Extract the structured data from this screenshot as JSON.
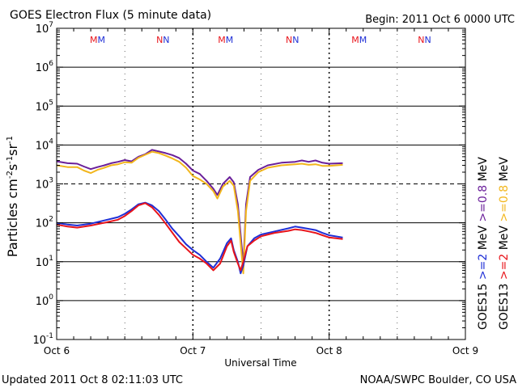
{
  "header": {
    "title": "GOES Electron Flux (5 minute data)",
    "begin": "Begin: 2011 Oct 6 0000 UTC"
  },
  "footer": {
    "updated": "Updated 2011 Oct  8 02:11:03 UTC",
    "credit": "NOAA/SWPC Boulder, CO USA"
  },
  "colors": {
    "goes15_2mev": "#1f2fd6",
    "goes13_2mev": "#e8141b",
    "goes15_08mev": "#6a1f9a",
    "goes13_08mev": "#f2b61c",
    "alert_threshold": "#000000"
  },
  "chart_data": {
    "type": "line",
    "title": "GOES Electron Flux (5 minute data)",
    "xlabel": "Universal Time",
    "ylabel_parts": [
      "Particles cm",
      "-2",
      "s",
      "-1",
      "sr",
      "-1"
    ],
    "y_scale": "log",
    "ylim_exp": [
      -1,
      7
    ],
    "y_tick_exponents": [
      -1,
      0,
      1,
      2,
      3,
      4,
      5,
      6,
      7
    ],
    "x_unit": "days since 2011 Oct 6 0000 UTC",
    "xlim": [
      0,
      3
    ],
    "x_ticks": [
      {
        "value": 0,
        "label": "Oct 6"
      },
      {
        "value": 1,
        "label": "Oct 7"
      },
      {
        "value": 2,
        "label": "Oct 8"
      },
      {
        "value": 3,
        "label": "Oct 9"
      }
    ],
    "gridlines_exp": [
      0,
      1,
      2,
      4,
      5,
      6
    ],
    "threshold": {
      "value": 1000,
      "style": "dashed"
    },
    "noon_markers": {
      "day_values": [
        0.5,
        1.5,
        2.5
      ]
    },
    "orbit_markers": [
      {
        "x": 0.3,
        "label": "MM"
      },
      {
        "x": 0.78,
        "label": "NN"
      },
      {
        "x": 1.24,
        "label": "MM"
      },
      {
        "x": 1.73,
        "label": "NN"
      },
      {
        "x": 2.22,
        "label": "MM"
      },
      {
        "x": 2.7,
        "label": "NN"
      }
    ],
    "legend": {
      "placement": "right",
      "entries": [
        {
          "sat": "GOES15",
          "energy": ">=2",
          "unit": "MeV",
          "series": "goes15_2mev"
        },
        {
          "sat": "GOES13",
          "energy": ">=2",
          "unit": "MeV",
          "series": "goes13_2mev"
        },
        {
          "sat": "GOES15",
          "energy": ">=0.8",
          "unit": "MeV",
          "series": "goes15_08mev"
        },
        {
          "sat": "GOES13",
          "energy": ">=0.8",
          "unit": "MeV",
          "series": "goes13_08mev"
        }
      ]
    },
    "series": [
      {
        "name": "GOES15 >=0.8 MeV",
        "key": "goes15_08mev",
        "points": [
          [
            0,
            3800
          ],
          [
            0.08,
            3400
          ],
          [
            0.15,
            3300
          ],
          [
            0.2,
            2800
          ],
          [
            0.25,
            2400
          ],
          [
            0.3,
            2700
          ],
          [
            0.35,
            3000
          ],
          [
            0.4,
            3400
          ],
          [
            0.45,
            3700
          ],
          [
            0.5,
            4100
          ],
          [
            0.55,
            3800
          ],
          [
            0.6,
            5000
          ],
          [
            0.65,
            5800
          ],
          [
            0.7,
            7500
          ],
          [
            0.75,
            6800
          ],
          [
            0.8,
            6200
          ],
          [
            0.85,
            5500
          ],
          [
            0.9,
            4600
          ],
          [
            0.95,
            3300
          ],
          [
            1.0,
            2200
          ],
          [
            1.05,
            1800
          ],
          [
            1.1,
            1200
          ],
          [
            1.15,
            750
          ],
          [
            1.18,
            520
          ],
          [
            1.22,
            1000
          ],
          [
            1.27,
            1500
          ],
          [
            1.3,
            1100
          ],
          [
            1.33,
            300
          ],
          [
            1.35,
            50
          ],
          [
            1.37,
            8
          ],
          [
            1.39,
            300
          ],
          [
            1.42,
            1500
          ],
          [
            1.48,
            2300
          ],
          [
            1.55,
            3000
          ],
          [
            1.65,
            3500
          ],
          [
            1.75,
            3700
          ],
          [
            1.8,
            4000
          ],
          [
            1.85,
            3700
          ],
          [
            1.9,
            4000
          ],
          [
            1.95,
            3500
          ],
          [
            2.0,
            3300
          ],
          [
            2.1,
            3400
          ]
        ]
      },
      {
        "name": "GOES13 >=0.8 MeV",
        "key": "goes13_08mev",
        "points": [
          [
            0,
            3000
          ],
          [
            0.08,
            2700
          ],
          [
            0.15,
            2700
          ],
          [
            0.2,
            2200
          ],
          [
            0.25,
            1900
          ],
          [
            0.3,
            2300
          ],
          [
            0.35,
            2600
          ],
          [
            0.4,
            3000
          ],
          [
            0.45,
            3200
          ],
          [
            0.5,
            3600
          ],
          [
            0.55,
            3500
          ],
          [
            0.6,
            4700
          ],
          [
            0.65,
            5600
          ],
          [
            0.7,
            6700
          ],
          [
            0.75,
            6200
          ],
          [
            0.8,
            5300
          ],
          [
            0.85,
            4500
          ],
          [
            0.9,
            3700
          ],
          [
            0.95,
            2600
          ],
          [
            1.0,
            1600
          ],
          [
            1.05,
            1300
          ],
          [
            1.1,
            1000
          ],
          [
            1.15,
            650
          ],
          [
            1.18,
            420
          ],
          [
            1.22,
            850
          ],
          [
            1.27,
            1200
          ],
          [
            1.3,
            900
          ],
          [
            1.33,
            200
          ],
          [
            1.35,
            30
          ],
          [
            1.37,
            5
          ],
          [
            1.39,
            200
          ],
          [
            1.42,
            1200
          ],
          [
            1.48,
            2000
          ],
          [
            1.55,
            2600
          ],
          [
            1.65,
            3000
          ],
          [
            1.75,
            3200
          ],
          [
            1.8,
            3300
          ],
          [
            1.85,
            3100
          ],
          [
            1.9,
            3200
          ],
          [
            1.95,
            2900
          ],
          [
            2.0,
            2900
          ],
          [
            2.1,
            3100
          ]
        ]
      },
      {
        "name": "GOES15 >=2 MeV",
        "key": "goes15_2mev",
        "points": [
          [
            0,
            100
          ],
          [
            0.08,
            90
          ],
          [
            0.15,
            85
          ],
          [
            0.25,
            95
          ],
          [
            0.35,
            115
          ],
          [
            0.45,
            140
          ],
          [
            0.5,
            170
          ],
          [
            0.55,
            220
          ],
          [
            0.6,
            300
          ],
          [
            0.65,
            330
          ],
          [
            0.7,
            280
          ],
          [
            0.75,
            200
          ],
          [
            0.8,
            120
          ],
          [
            0.85,
            70
          ],
          [
            0.9,
            45
          ],
          [
            0.95,
            28
          ],
          [
            1.0,
            20
          ],
          [
            1.05,
            15
          ],
          [
            1.1,
            10
          ],
          [
            1.15,
            7
          ],
          [
            1.2,
            12
          ],
          [
            1.25,
            30
          ],
          [
            1.28,
            40
          ],
          [
            1.3,
            20
          ],
          [
            1.33,
            10
          ],
          [
            1.35,
            5
          ],
          [
            1.37,
            8
          ],
          [
            1.4,
            25
          ],
          [
            1.45,
            40
          ],
          [
            1.5,
            50
          ],
          [
            1.6,
            60
          ],
          [
            1.7,
            72
          ],
          [
            1.75,
            80
          ],
          [
            1.8,
            75
          ],
          [
            1.85,
            70
          ],
          [
            1.9,
            65
          ],
          [
            1.95,
            55
          ],
          [
            2.0,
            48
          ],
          [
            2.1,
            42
          ]
        ]
      },
      {
        "name": "GOES13 >=2 MeV",
        "key": "goes13_2mev",
        "points": [
          [
            0,
            90
          ],
          [
            0.08,
            80
          ],
          [
            0.15,
            75
          ],
          [
            0.25,
            85
          ],
          [
            0.35,
            100
          ],
          [
            0.45,
            120
          ],
          [
            0.5,
            150
          ],
          [
            0.55,
            200
          ],
          [
            0.6,
            280
          ],
          [
            0.65,
            320
          ],
          [
            0.7,
            250
          ],
          [
            0.75,
            160
          ],
          [
            0.8,
            95
          ],
          [
            0.85,
            55
          ],
          [
            0.9,
            32
          ],
          [
            0.95,
            22
          ],
          [
            1.0,
            15
          ],
          [
            1.05,
            12
          ],
          [
            1.1,
            9
          ],
          [
            1.15,
            6
          ],
          [
            1.2,
            9
          ],
          [
            1.25,
            25
          ],
          [
            1.28,
            35
          ],
          [
            1.3,
            18
          ],
          [
            1.33,
            9
          ],
          [
            1.35,
            6
          ],
          [
            1.37,
            10
          ],
          [
            1.4,
            25
          ],
          [
            1.45,
            35
          ],
          [
            1.5,
            45
          ],
          [
            1.6,
            55
          ],
          [
            1.7,
            62
          ],
          [
            1.75,
            68
          ],
          [
            1.8,
            65
          ],
          [
            1.85,
            60
          ],
          [
            1.9,
            55
          ],
          [
            1.95,
            48
          ],
          [
            2.0,
            42
          ],
          [
            2.1,
            38
          ]
        ]
      }
    ]
  }
}
